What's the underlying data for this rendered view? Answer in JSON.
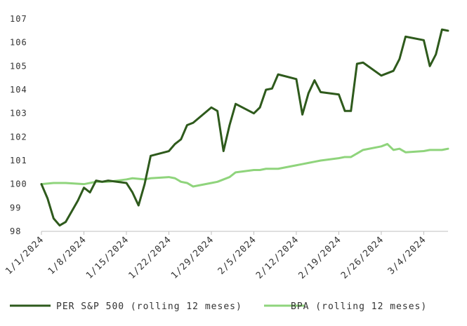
{
  "chart_data": {
    "type": "line",
    "title": "",
    "xlabel": "",
    "ylabel": "",
    "ylim": [
      98,
      107
    ],
    "xlim": [
      0,
      67
    ],
    "grid": false,
    "legend_position": "bottom",
    "y_ticks": [
      98,
      99,
      100,
      101,
      102,
      103,
      104,
      105,
      106,
      107
    ],
    "x_ticks": [
      {
        "day": 0,
        "label": "1/1/2024"
      },
      {
        "day": 7,
        "label": "1/8/2024"
      },
      {
        "day": 14,
        "label": "1/15/2024"
      },
      {
        "day": 21,
        "label": "1/22/2024"
      },
      {
        "day": 28,
        "label": "1/29/2024"
      },
      {
        "day": 35,
        "label": "2/5/2024"
      },
      {
        "day": 42,
        "label": "2/12/2024"
      },
      {
        "day": 49,
        "label": "2/19/2024"
      },
      {
        "day": 56,
        "label": "2/26/2024"
      },
      {
        "day": 63,
        "label": "3/4/2024"
      }
    ],
    "series": [
      {
        "name": "PER S&P 500 (rolling 12 meses)",
        "color": "#2e5a1c",
        "points": [
          [
            0,
            100.0
          ],
          [
            1,
            99.4
          ],
          [
            2,
            98.55
          ],
          [
            3,
            98.25
          ],
          [
            4,
            98.4
          ],
          [
            6,
            99.3
          ],
          [
            7,
            99.85
          ],
          [
            8,
            99.65
          ],
          [
            9,
            100.15
          ],
          [
            10,
            100.1
          ],
          [
            11,
            100.15
          ],
          [
            14,
            100.05
          ],
          [
            15,
            99.65
          ],
          [
            16,
            99.1
          ],
          [
            17,
            100.0
          ],
          [
            18,
            101.2
          ],
          [
            21,
            101.4
          ],
          [
            22,
            101.7
          ],
          [
            23,
            101.9
          ],
          [
            24,
            102.5
          ],
          [
            25,
            102.6
          ],
          [
            28,
            103.25
          ],
          [
            29,
            103.1
          ],
          [
            30,
            101.4
          ],
          [
            31,
            102.5
          ],
          [
            32,
            103.4
          ],
          [
            35,
            103.0
          ],
          [
            36,
            103.25
          ],
          [
            37,
            104.0
          ],
          [
            38,
            104.05
          ],
          [
            39,
            104.65
          ],
          [
            42,
            104.45
          ],
          [
            43,
            102.95
          ],
          [
            44,
            103.85
          ],
          [
            45,
            104.4
          ],
          [
            46,
            103.9
          ],
          [
            49,
            103.8
          ],
          [
            50,
            103.1
          ],
          [
            51,
            103.1
          ],
          [
            52,
            105.1
          ],
          [
            53,
            105.15
          ],
          [
            56,
            104.6
          ],
          [
            57,
            104.7
          ],
          [
            58,
            104.8
          ],
          [
            59,
            105.3
          ],
          [
            60,
            106.25
          ],
          [
            63,
            106.1
          ],
          [
            64,
            105.0
          ],
          [
            65,
            105.5
          ],
          [
            66,
            106.55
          ],
          [
            67,
            106.5
          ]
        ]
      },
      {
        "name": "BPA (rolling 12 meses)",
        "color": "#8fd47c",
        "points": [
          [
            0,
            100.0
          ],
          [
            2,
            100.05
          ],
          [
            4,
            100.05
          ],
          [
            7,
            100.0
          ],
          [
            9,
            100.1
          ],
          [
            11,
            100.1
          ],
          [
            14,
            100.2
          ],
          [
            15,
            100.25
          ],
          [
            17,
            100.2
          ],
          [
            18,
            100.25
          ],
          [
            21,
            100.3
          ],
          [
            22,
            100.25
          ],
          [
            23,
            100.1
          ],
          [
            24,
            100.05
          ],
          [
            25,
            99.9
          ],
          [
            28,
            100.05
          ],
          [
            29,
            100.1
          ],
          [
            30,
            100.2
          ],
          [
            31,
            100.3
          ],
          [
            32,
            100.5
          ],
          [
            35,
            100.6
          ],
          [
            36,
            100.6
          ],
          [
            37,
            100.65
          ],
          [
            38,
            100.65
          ],
          [
            39,
            100.65
          ],
          [
            42,
            100.8
          ],
          [
            43,
            100.85
          ],
          [
            44,
            100.9
          ],
          [
            45,
            100.95
          ],
          [
            46,
            101.0
          ],
          [
            49,
            101.1
          ],
          [
            50,
            101.15
          ],
          [
            51,
            101.15
          ],
          [
            52,
            101.3
          ],
          [
            53,
            101.45
          ],
          [
            56,
            101.6
          ],
          [
            57,
            101.7
          ],
          [
            58,
            101.45
          ],
          [
            59,
            101.5
          ],
          [
            60,
            101.35
          ],
          [
            63,
            101.4
          ],
          [
            64,
            101.45
          ],
          [
            65,
            101.45
          ],
          [
            66,
            101.45
          ],
          [
            67,
            101.5
          ]
        ]
      }
    ]
  }
}
